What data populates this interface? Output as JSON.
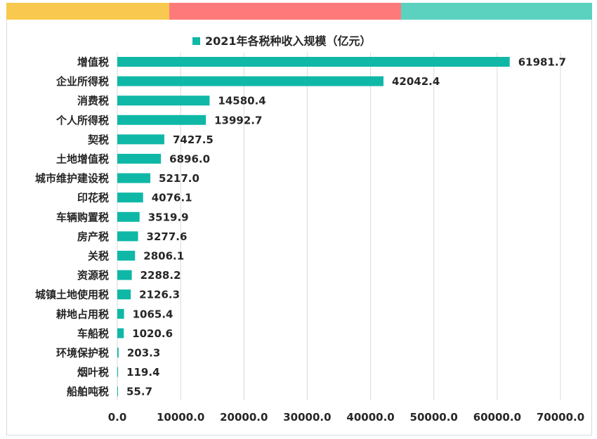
{
  "colors": {
    "bar": "#0fb8a6",
    "grid": "#d9d9d9",
    "top_band": [
      "#f9c94f",
      "#fe7a7a",
      "#5bd2c0"
    ]
  },
  "chart_data": {
    "type": "bar",
    "orientation": "horizontal",
    "title": "",
    "xlabel": "",
    "ylabel": "",
    "legend": {
      "position": "top",
      "label": "2021年各税种收入规模（亿元）"
    },
    "xlim": [
      0,
      70000
    ],
    "xticks": [
      "0.0",
      "10000.0",
      "20000.0",
      "30000.0",
      "40000.0",
      "50000.0",
      "60000.0",
      "70000.0"
    ],
    "grid": true,
    "categories": [
      "增值税",
      "企业所得税",
      "消费税",
      "个人所得税",
      "契税",
      "土地增值税",
      "城市维护建设税",
      "印花税",
      "车辆购置税",
      "房产税",
      "关税",
      "资源税",
      "城镇土地使用税",
      "耕地占用税",
      "车船税",
      "环境保护税",
      "烟叶税",
      "船舶吨税"
    ],
    "series": [
      {
        "name": "2021年各税种收入规模（亿元）",
        "values": [
          61981.7,
          42042.4,
          14580.4,
          13992.7,
          7427.5,
          6896.0,
          5217.0,
          4076.1,
          3519.9,
          3277.6,
          2806.1,
          2288.2,
          2126.3,
          1065.4,
          1020.6,
          203.3,
          119.4,
          55.7
        ],
        "labels": [
          "61981.7",
          "42042.4",
          "14580.4",
          "13992.7",
          "7427.5",
          "6896.0",
          "5217.0",
          "4076.1",
          "3519.9",
          "3277.6",
          "2806.1",
          "2288.2",
          "2126.3",
          "1065.4",
          "1020.6",
          "203.3",
          "119.4",
          "55.7"
        ]
      }
    ]
  }
}
